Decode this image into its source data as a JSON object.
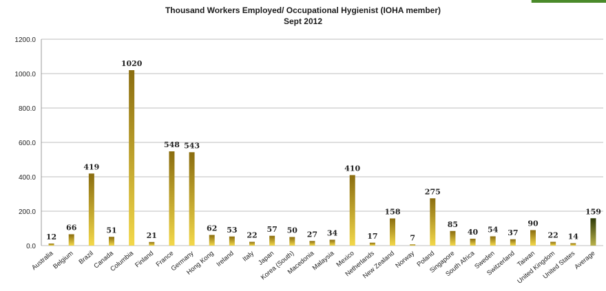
{
  "chart_data": {
    "type": "bar",
    "title": "Thousand Workers Employed/ Occupational Hygienist (IOHA member)",
    "subtitle": "Sept 2012",
    "categories": [
      "Australia",
      "Belgium",
      "Brazil",
      "Canada",
      "Columbia",
      "Finland",
      "France",
      "Germany",
      "Hong Kong",
      "Ireland",
      "Italy",
      "Japan",
      "Korea (South)",
      "Macedonia",
      "Malaysia",
      "Mexico",
      "Netherlands",
      "New Zealand",
      "Norway",
      "Poland",
      "Singapore",
      "South Africa",
      "Sweden",
      "Switzerland",
      "Taiwan",
      "United Kingdom",
      "United States",
      "Average"
    ],
    "values": [
      12,
      66,
      419,
      51,
      1020,
      21,
      548,
      543,
      62,
      53,
      22,
      57,
      50,
      27,
      34,
      410,
      17,
      158,
      7,
      275,
      85,
      40,
      54,
      37,
      90,
      22,
      14,
      159
    ],
    "value_labels": [
      "12",
      "66",
      "419",
      "51",
      "1020",
      "21",
      "548",
      "543",
      "62",
      "53",
      "22",
      "57",
      "50",
      "27",
      "34",
      "410",
      "17",
      "158",
      "7",
      "275",
      "85",
      "40",
      "54",
      "37",
      "90",
      "22",
      "14",
      "159"
    ],
    "ylim": [
      0,
      1200
    ],
    "yticks": [
      "0.0",
      "200.0",
      "400.0",
      "600.0",
      "800.0",
      "1000.0",
      "1200.0"
    ],
    "xlabel": "",
    "ylabel": "",
    "grid": true,
    "colors": {
      "bar_light": "#f3d84a",
      "bar_dark": "#8a6d10",
      "average_light": "#b9b24a",
      "average_dark": "#2f3a08",
      "grid": "#bdbdbd"
    }
  }
}
